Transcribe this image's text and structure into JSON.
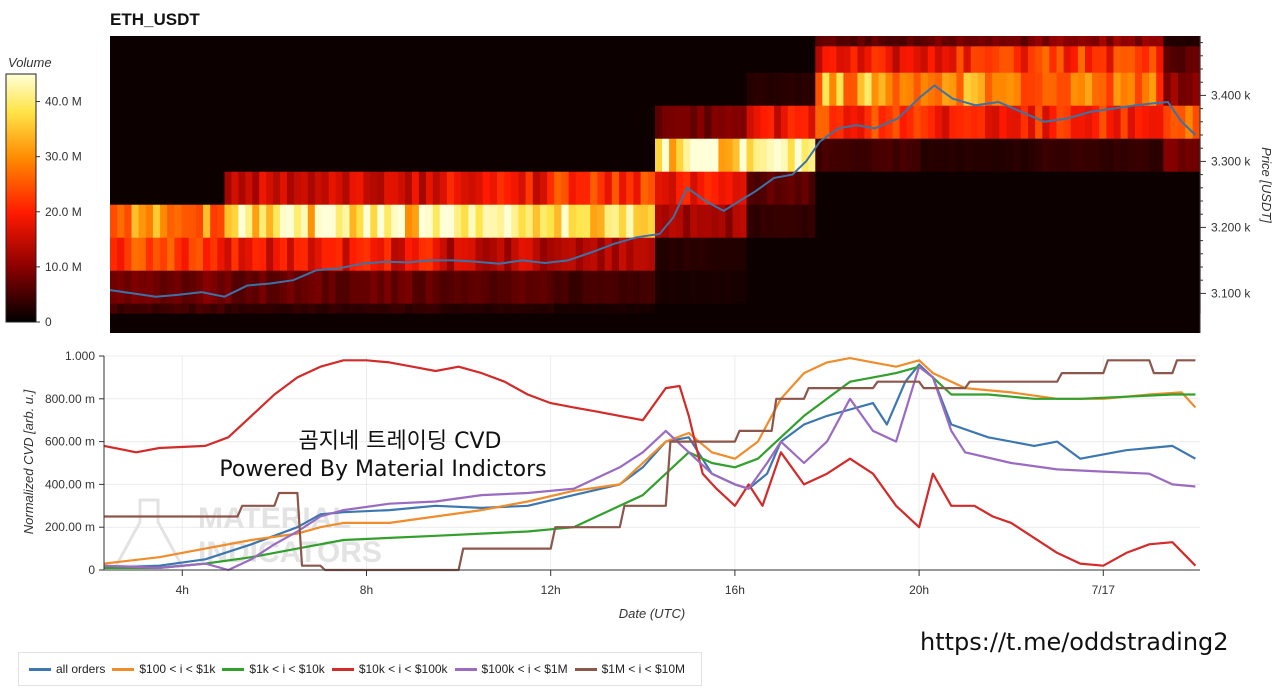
{
  "chart_data": [
    {
      "type": "heatmap",
      "title": "ETH_USDT",
      "ylabel": "Price [USDT]",
      "y_ticks": [
        "3.100 k",
        "3.200 k",
        "3.300 k",
        "3.400 k"
      ],
      "y_tick_values": [
        3100,
        3200,
        3300,
        3400
      ],
      "ylim": [
        3040,
        3490
      ],
      "xlim": [
        2.3,
        26.1
      ],
      "price_bands": [
        [
          3070,
          3085
        ],
        [
          3085,
          3135
        ],
        [
          3135,
          3185
        ],
        [
          3185,
          3235
        ],
        [
          3235,
          3285
        ],
        [
          3285,
          3335
        ],
        [
          3335,
          3385
        ],
        [
          3385,
          3435
        ],
        [
          3435,
          3475
        ],
        [
          3475,
          3490
        ]
      ],
      "time_segments": [
        {
          "x": [
            2.3,
            4.8
          ],
          "band_volumes_M": [
            4,
            8,
            22,
            30,
            0,
            0,
            0,
            0,
            0,
            0
          ]
        },
        {
          "x": [
            4.8,
            9.5
          ],
          "band_volumes_M": [
            3,
            7,
            18,
            40,
            15,
            0,
            0,
            0,
            0,
            0
          ]
        },
        {
          "x": [
            9.5,
            12.0
          ],
          "band_volumes_M": [
            2,
            6,
            14,
            43,
            18,
            0,
            0,
            0,
            0,
            0
          ]
        },
        {
          "x": [
            12.0,
            14.2
          ],
          "band_volumes_M": [
            1,
            4,
            12,
            38,
            22,
            0,
            0,
            0,
            0,
            0
          ]
        },
        {
          "x": [
            14.2,
            16.2
          ],
          "band_volumes_M": [
            0,
            1,
            2,
            12,
            18,
            40,
            8,
            0,
            0,
            0
          ]
        },
        {
          "x": [
            16.2,
            17.7
          ],
          "band_volumes_M": [
            0,
            0,
            0,
            3,
            6,
            38,
            18,
            2,
            0,
            0
          ]
        },
        {
          "x": [
            17.7,
            20.0
          ],
          "band_volumes_M": [
            0,
            0,
            0,
            0,
            0,
            4,
            22,
            32,
            18,
            6
          ]
        },
        {
          "x": [
            20.0,
            22.5
          ],
          "band_volumes_M": [
            0,
            0,
            0,
            0,
            0,
            2,
            18,
            30,
            20,
            8
          ]
        },
        {
          "x": [
            22.5,
            25.3
          ],
          "band_volumes_M": [
            0,
            0,
            0,
            0,
            0,
            3,
            20,
            26,
            22,
            10
          ]
        },
        {
          "x": [
            25.3,
            26.1
          ],
          "band_volumes_M": [
            0,
            0,
            0,
            0,
            0,
            8,
            26,
            10,
            6,
            2
          ]
        }
      ],
      "price_line": {
        "color": "#3b73a8",
        "x": [
          2.3,
          2.8,
          3.3,
          3.8,
          4.3,
          4.8,
          5.3,
          5.8,
          6.3,
          6.8,
          7.3,
          7.8,
          8.3,
          8.8,
          9.3,
          9.8,
          10.3,
          10.8,
          11.3,
          11.8,
          12.3,
          12.8,
          13.3,
          13.8,
          14.3,
          14.6,
          14.9,
          15.3,
          15.7,
          16.0,
          16.4,
          16.8,
          17.2,
          17.5,
          17.8,
          18.2,
          18.6,
          19.0,
          19.5,
          20.0,
          20.3,
          20.7,
          21.2,
          21.7,
          22.2,
          22.7,
          23.2,
          23.7,
          24.2,
          24.7,
          25.1,
          25.4,
          25.7,
          26.0
        ],
        "y": [
          3105,
          3100,
          3095,
          3098,
          3102,
          3095,
          3112,
          3115,
          3120,
          3135,
          3138,
          3145,
          3148,
          3147,
          3150,
          3150,
          3148,
          3145,
          3150,
          3146,
          3150,
          3162,
          3175,
          3185,
          3190,
          3215,
          3260,
          3240,
          3225,
          3238,
          3255,
          3275,
          3280,
          3300,
          3330,
          3350,
          3355,
          3350,
          3365,
          3398,
          3415,
          3395,
          3385,
          3390,
          3375,
          3360,
          3365,
          3375,
          3380,
          3385,
          3388,
          3390,
          3360,
          3340
        ]
      },
      "colorbar": {
        "title": "Volume",
        "ticks": [
          "0",
          "10.0 M",
          "20.0 M",
          "30.0 M",
          "40.0 M"
        ],
        "range": [
          0,
          45
        ]
      }
    },
    {
      "type": "line",
      "xlabel": "Date (UTC)",
      "ylabel": "Normalized CVD [arb. u.]",
      "x_ticks": [
        "4h",
        "8h",
        "12h",
        "16h",
        "20h",
        "7/17"
      ],
      "x_tick_values": [
        4,
        8,
        12,
        16,
        20,
        24
      ],
      "y_ticks": [
        "0",
        "200.00 m",
        "400.00 m",
        "600.00 m",
        "800.00 m",
        "1.000"
      ],
      "y_tick_values": [
        0,
        0.2,
        0.4,
        0.6,
        0.8,
        1.0
      ],
      "xlim": [
        2.3,
        26.1
      ],
      "ylim": [
        0,
        1.0
      ],
      "grid": true,
      "legend_position": "bottom",
      "series": [
        {
          "name": "all orders",
          "color": "#3c77b0",
          "x": [
            2.3,
            3.5,
            4.5,
            5.5,
            6.5,
            7.0,
            7.5,
            8.5,
            9.5,
            10.5,
            11.5,
            12.5,
            13.5,
            14.0,
            14.5,
            15.0,
            15.5,
            16.0,
            16.3,
            16.7,
            17.0,
            17.5,
            18.0,
            18.5,
            19.0,
            19.3,
            19.7,
            20.0,
            20.3,
            20.7,
            21.5,
            22.5,
            23.0,
            23.5,
            24.5,
            25.5,
            26.0
          ],
          "y": [
            0.01,
            0.02,
            0.05,
            0.12,
            0.2,
            0.26,
            0.27,
            0.28,
            0.3,
            0.29,
            0.3,
            0.35,
            0.4,
            0.48,
            0.6,
            0.62,
            0.45,
            0.4,
            0.38,
            0.45,
            0.6,
            0.68,
            0.72,
            0.75,
            0.78,
            0.68,
            0.88,
            0.96,
            0.9,
            0.68,
            0.62,
            0.58,
            0.6,
            0.52,
            0.56,
            0.58,
            0.52
          ]
        },
        {
          "name": "$100 < i < $1k",
          "color": "#f08c2a",
          "x": [
            2.3,
            3.5,
            4.5,
            5.5,
            6.5,
            7.0,
            7.5,
            8.5,
            9.5,
            10.5,
            11.5,
            12.5,
            13.5,
            14.0,
            14.5,
            15.0,
            15.5,
            16.0,
            16.5,
            17.0,
            17.5,
            18.0,
            18.5,
            19.0,
            19.5,
            20.0,
            20.3,
            21.0,
            22.0,
            23.0,
            24.0,
            25.0,
            25.7,
            26.0
          ],
          "y": [
            0.03,
            0.06,
            0.1,
            0.14,
            0.17,
            0.2,
            0.22,
            0.22,
            0.25,
            0.28,
            0.32,
            0.37,
            0.4,
            0.5,
            0.6,
            0.64,
            0.55,
            0.52,
            0.6,
            0.8,
            0.92,
            0.97,
            0.99,
            0.97,
            0.95,
            0.98,
            0.92,
            0.85,
            0.83,
            0.8,
            0.8,
            0.82,
            0.83,
            0.76
          ]
        },
        {
          "name": "$1k < i < $10k",
          "color": "#31a02c",
          "x": [
            2.3,
            3.5,
            4.5,
            5.5,
            6.5,
            7.5,
            8.5,
            9.5,
            10.5,
            11.5,
            12.5,
            13.0,
            13.5,
            14.0,
            14.5,
            15.0,
            15.5,
            16.0,
            16.5,
            17.0,
            17.5,
            18.0,
            18.5,
            19.0,
            19.5,
            20.0,
            20.3,
            20.7,
            21.5,
            22.5,
            23.5,
            24.5,
            25.5,
            26.0
          ],
          "y": [
            0.01,
            0.01,
            0.03,
            0.06,
            0.1,
            0.14,
            0.15,
            0.16,
            0.17,
            0.18,
            0.2,
            0.25,
            0.3,
            0.35,
            0.45,
            0.55,
            0.5,
            0.48,
            0.52,
            0.62,
            0.72,
            0.8,
            0.88,
            0.9,
            0.92,
            0.95,
            0.9,
            0.82,
            0.82,
            0.8,
            0.8,
            0.81,
            0.82,
            0.82
          ]
        },
        {
          "name": "$10k < i < $100k",
          "color": "#d32a2a",
          "x": [
            2.3,
            3.0,
            3.5,
            4.5,
            5.0,
            5.5,
            6.0,
            6.5,
            7.0,
            7.5,
            8.0,
            8.5,
            9.0,
            9.5,
            10.0,
            10.5,
            11.0,
            11.5,
            12.0,
            12.5,
            13.0,
            13.5,
            14.0,
            14.5,
            14.8,
            15.0,
            15.3,
            15.6,
            16.0,
            16.3,
            16.6,
            17.0,
            17.5,
            18.0,
            18.5,
            19.0,
            19.5,
            20.0,
            20.3,
            20.7,
            21.2,
            21.6,
            22.0,
            22.5,
            23.0,
            23.5,
            24.0,
            24.5,
            25.0,
            25.5,
            26.0
          ],
          "y": [
            0.58,
            0.55,
            0.57,
            0.58,
            0.62,
            0.72,
            0.82,
            0.9,
            0.95,
            0.98,
            0.98,
            0.97,
            0.95,
            0.93,
            0.95,
            0.92,
            0.88,
            0.82,
            0.78,
            0.76,
            0.74,
            0.72,
            0.7,
            0.85,
            0.86,
            0.72,
            0.45,
            0.38,
            0.3,
            0.4,
            0.3,
            0.55,
            0.4,
            0.45,
            0.52,
            0.45,
            0.3,
            0.2,
            0.45,
            0.3,
            0.3,
            0.25,
            0.22,
            0.15,
            0.08,
            0.03,
            0.02,
            0.08,
            0.12,
            0.13,
            0.02
          ]
        },
        {
          "name": "$100k < i < $1M",
          "color": "#9a6bc0",
          "x": [
            2.3,
            3.5,
            4.5,
            5.0,
            5.5,
            6.0,
            6.5,
            7.0,
            7.5,
            8.5,
            9.5,
            10.5,
            11.5,
            12.5,
            13.5,
            14.0,
            14.5,
            15.0,
            15.5,
            16.0,
            16.3,
            16.7,
            17.0,
            17.5,
            18.0,
            18.5,
            19.0,
            19.5,
            20.0,
            20.3,
            20.7,
            21.0,
            22.0,
            23.0,
            24.0,
            25.0,
            25.5,
            26.0
          ],
          "y": [
            0.02,
            0.01,
            0.03,
            0.0,
            0.05,
            0.12,
            0.18,
            0.25,
            0.28,
            0.31,
            0.32,
            0.35,
            0.36,
            0.38,
            0.48,
            0.55,
            0.65,
            0.55,
            0.45,
            0.4,
            0.38,
            0.5,
            0.6,
            0.5,
            0.6,
            0.8,
            0.65,
            0.6,
            0.95,
            0.9,
            0.65,
            0.55,
            0.5,
            0.47,
            0.46,
            0.45,
            0.4,
            0.39
          ]
        },
        {
          "name": "$1M < i < $10M",
          "color": "#8c564b",
          "x": [
            2.3,
            5.2,
            5.3,
            6.0,
            6.1,
            6.5,
            6.6,
            7.0,
            7.1,
            8.5,
            9.0,
            10.0,
            10.1,
            12.0,
            12.1,
            13.5,
            13.6,
            14.5,
            14.6,
            16.0,
            16.1,
            16.8,
            16.9,
            17.5,
            17.6,
            19.0,
            19.1,
            20.0,
            20.1,
            21.0,
            21.1,
            23.0,
            23.1,
            24.0,
            24.1,
            25.0,
            25.1,
            25.5,
            25.6,
            26.0
          ],
          "y": [
            0.25,
            0.25,
            0.3,
            0.3,
            0.36,
            0.36,
            0.02,
            0.02,
            0.0,
            0.0,
            0.0,
            0.0,
            0.1,
            0.1,
            0.2,
            0.2,
            0.3,
            0.3,
            0.6,
            0.6,
            0.65,
            0.65,
            0.8,
            0.8,
            0.85,
            0.85,
            0.88,
            0.88,
            0.85,
            0.85,
            0.88,
            0.88,
            0.92,
            0.92,
            0.98,
            0.98,
            0.92,
            0.92,
            0.98,
            0.98
          ]
        }
      ]
    }
  ],
  "overlay": {
    "line1": "곰지네 트레이딩 CVD",
    "line2": "Powered By Material Indictors",
    "watermark_1": "MATERIAL",
    "watermark_2": "INDICATORS"
  },
  "link": "https://t.me/oddstrading2"
}
